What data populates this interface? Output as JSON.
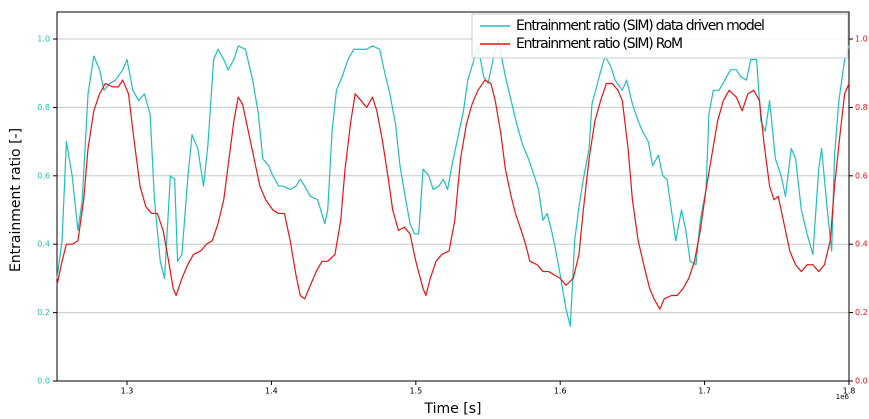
{
  "chart_data": {
    "type": "line",
    "xlabel": "Time [s]",
    "ylabel": "Entrainment ratio [-]",
    "x_offset_label": "1e6",
    "xlim": [
      1.2515,
      1.8
    ],
    "xticks": [
      1.3,
      1.4,
      1.5,
      1.6,
      1.7,
      1.8
    ],
    "ylim": [
      0,
      1.079
    ],
    "yticks": [
      {
        "value": 0,
        "label": "0.0"
      },
      0.2,
      0.4,
      0.6,
      0.8,
      {
        "value": 1,
        "label": "1.0"
      }
    ],
    "y2lim": [
      0,
      1.079
    ],
    "y2ticks": [
      {
        "value": 0,
        "label": "0.0"
      },
      0.2,
      0.4,
      0.6,
      0.8,
      {
        "value": 1,
        "label": "1.0"
      }
    ],
    "grid": true,
    "legend": "upper right",
    "series": [
      {
        "name": "Entrainment ratio (SIM) data driven model",
        "color": "#1fbfbf",
        "x": [
          1.2515,
          1.255,
          1.258,
          1.262,
          1.266,
          1.269,
          1.273,
          1.277,
          1.281,
          1.284,
          1.288,
          1.292,
          1.297,
          1.3,
          1.304,
          1.308,
          1.312,
          1.316,
          1.319,
          1.323,
          1.326,
          1.33,
          1.333,
          1.335,
          1.338,
          1.342,
          1.345,
          1.349,
          1.353,
          1.356,
          1.36,
          1.363,
          1.367,
          1.37,
          1.374,
          1.377,
          1.382,
          1.387,
          1.391,
          1.394,
          1.398,
          1.401,
          1.405,
          1.408,
          1.413,
          1.417,
          1.42,
          1.423,
          1.427,
          1.432,
          1.437,
          1.439,
          1.442,
          1.445,
          1.449,
          1.453,
          1.457,
          1.462,
          1.466,
          1.47,
          1.475,
          1.478,
          1.482,
          1.486,
          1.489,
          1.493,
          1.496,
          1.499,
          1.502,
          1.505,
          1.509,
          1.512,
          1.516,
          1.519,
          1.522,
          1.525,
          1.53,
          1.533,
          1.536,
          1.541,
          1.543,
          1.547,
          1.55,
          1.554,
          1.557,
          1.562,
          1.566,
          1.57,
          1.574,
          1.578,
          1.582,
          1.585,
          1.588,
          1.591,
          1.594,
          1.597,
          1.6,
          1.604,
          1.607,
          1.61,
          1.613,
          1.616,
          1.62,
          1.622,
          1.627,
          1.631,
          1.635,
          1.638,
          1.643,
          1.646,
          1.65,
          1.654,
          1.657,
          1.661,
          1.664,
          1.668,
          1.671,
          1.674,
          1.677,
          1.68,
          1.684,
          1.687,
          1.69,
          1.694,
          1.697,
          1.701,
          1.703,
          1.706,
          1.71,
          1.714,
          1.718,
          1.722,
          1.725,
          1.729,
          1.732,
          1.736,
          1.739,
          1.742,
          1.745,
          1.749,
          1.753,
          1.756,
          1.76,
          1.763,
          1.767,
          1.771,
          1.775,
          1.779,
          1.781,
          1.785,
          1.788,
          1.79,
          1.793,
          1.797,
          1.8
        ],
        "values": [
          0.3,
          0.41,
          0.7,
          0.6,
          0.44,
          0.53,
          0.84,
          0.95,
          0.91,
          0.85,
          0.87,
          0.88,
          0.91,
          0.94,
          0.85,
          0.82,
          0.84,
          0.78,
          0.53,
          0.35,
          0.3,
          0.6,
          0.59,
          0.35,
          0.37,
          0.59,
          0.72,
          0.68,
          0.57,
          0.69,
          0.94,
          0.97,
          0.94,
          0.91,
          0.94,
          0.98,
          0.97,
          0.88,
          0.78,
          0.65,
          0.63,
          0.6,
          0.57,
          0.57,
          0.56,
          0.57,
          0.59,
          0.57,
          0.54,
          0.53,
          0.46,
          0.5,
          0.73,
          0.85,
          0.89,
          0.94,
          0.97,
          0.97,
          0.97,
          0.98,
          0.97,
          0.91,
          0.84,
          0.75,
          0.63,
          0.53,
          0.46,
          0.43,
          0.43,
          0.62,
          0.6,
          0.56,
          0.57,
          0.59,
          0.56,
          0.63,
          0.73,
          0.79,
          0.88,
          0.95,
          0.98,
          0.89,
          0.87,
          0.95,
          1.0,
          0.89,
          0.82,
          0.75,
          0.69,
          0.65,
          0.6,
          0.56,
          0.47,
          0.49,
          0.44,
          0.38,
          0.31,
          0.21,
          0.16,
          0.41,
          0.51,
          0.59,
          0.68,
          0.81,
          0.89,
          0.95,
          0.92,
          0.88,
          0.85,
          0.88,
          0.81,
          0.76,
          0.73,
          0.7,
          0.63,
          0.66,
          0.6,
          0.59,
          0.5,
          0.41,
          0.5,
          0.44,
          0.35,
          0.34,
          0.47,
          0.56,
          0.78,
          0.85,
          0.85,
          0.88,
          0.91,
          0.91,
          0.89,
          0.88,
          0.94,
          0.94,
          0.76,
          0.73,
          0.82,
          0.65,
          0.6,
          0.54,
          0.68,
          0.65,
          0.5,
          0.43,
          0.37,
          0.62,
          0.68,
          0.5,
          0.38,
          0.66,
          0.82,
          0.94,
          0.98
        ]
      },
      {
        "name": "Entrainment ratio (SIM) RoM",
        "color": "#ee1111",
        "axis": "y2",
        "x": [
          1.2515,
          1.255,
          1.258,
          1.262,
          1.266,
          1.27,
          1.273,
          1.277,
          1.281,
          1.285,
          1.29,
          1.294,
          1.297,
          1.301,
          1.305,
          1.309,
          1.313,
          1.317,
          1.321,
          1.325,
          1.328,
          1.332,
          1.334,
          1.338,
          1.342,
          1.346,
          1.351,
          1.355,
          1.359,
          1.363,
          1.367,
          1.37,
          1.374,
          1.377,
          1.38,
          1.384,
          1.388,
          1.392,
          1.396,
          1.401,
          1.405,
          1.409,
          1.413,
          1.417,
          1.42,
          1.423,
          1.427,
          1.431,
          1.435,
          1.439,
          1.444,
          1.448,
          1.451,
          1.455,
          1.458,
          1.462,
          1.466,
          1.47,
          1.473,
          1.477,
          1.481,
          1.484,
          1.488,
          1.492,
          1.496,
          1.5,
          1.505,
          1.507,
          1.51,
          1.514,
          1.518,
          1.523,
          1.527,
          1.531,
          1.535,
          1.539,
          1.543,
          1.548,
          1.552,
          1.555,
          1.559,
          1.562,
          1.566,
          1.569,
          1.573,
          1.576,
          1.579,
          1.584,
          1.588,
          1.592,
          1.596,
          1.6,
          1.604,
          1.609,
          1.613,
          1.616,
          1.62,
          1.624,
          1.628,
          1.632,
          1.636,
          1.64,
          1.643,
          1.647,
          1.65,
          1.654,
          1.659,
          1.662,
          1.665,
          1.669,
          1.672,
          1.677,
          1.681,
          1.685,
          1.689,
          1.693,
          1.697,
          1.701,
          1.705,
          1.709,
          1.713,
          1.717,
          1.722,
          1.726,
          1.73,
          1.734,
          1.738,
          1.741,
          1.745,
          1.748,
          1.751,
          1.755,
          1.759,
          1.763,
          1.767,
          1.771,
          1.775,
          1.779,
          1.783,
          1.787,
          1.79,
          1.794,
          1.797,
          1.8
        ],
        "values": [
          0.28,
          0.35,
          0.4,
          0.4,
          0.41,
          0.53,
          0.68,
          0.79,
          0.84,
          0.87,
          0.86,
          0.86,
          0.88,
          0.84,
          0.7,
          0.57,
          0.51,
          0.49,
          0.49,
          0.44,
          0.37,
          0.27,
          0.25,
          0.3,
          0.34,
          0.37,
          0.38,
          0.4,
          0.41,
          0.46,
          0.53,
          0.63,
          0.76,
          0.83,
          0.81,
          0.73,
          0.65,
          0.57,
          0.53,
          0.5,
          0.49,
          0.49,
          0.41,
          0.31,
          0.25,
          0.24,
          0.28,
          0.32,
          0.35,
          0.35,
          0.37,
          0.47,
          0.62,
          0.76,
          0.84,
          0.82,
          0.8,
          0.83,
          0.79,
          0.7,
          0.59,
          0.5,
          0.44,
          0.45,
          0.43,
          0.35,
          0.27,
          0.25,
          0.3,
          0.35,
          0.37,
          0.38,
          0.47,
          0.65,
          0.75,
          0.81,
          0.85,
          0.88,
          0.87,
          0.82,
          0.72,
          0.62,
          0.54,
          0.49,
          0.44,
          0.4,
          0.35,
          0.34,
          0.32,
          0.32,
          0.31,
          0.3,
          0.28,
          0.3,
          0.37,
          0.5,
          0.65,
          0.76,
          0.82,
          0.87,
          0.87,
          0.85,
          0.82,
          0.68,
          0.53,
          0.41,
          0.32,
          0.27,
          0.24,
          0.21,
          0.24,
          0.25,
          0.25,
          0.27,
          0.3,
          0.35,
          0.44,
          0.56,
          0.66,
          0.76,
          0.82,
          0.85,
          0.83,
          0.79,
          0.84,
          0.85,
          0.82,
          0.7,
          0.57,
          0.53,
          0.54,
          0.46,
          0.38,
          0.34,
          0.32,
          0.34,
          0.34,
          0.32,
          0.34,
          0.41,
          0.57,
          0.73,
          0.84,
          0.87
        ]
      }
    ]
  }
}
